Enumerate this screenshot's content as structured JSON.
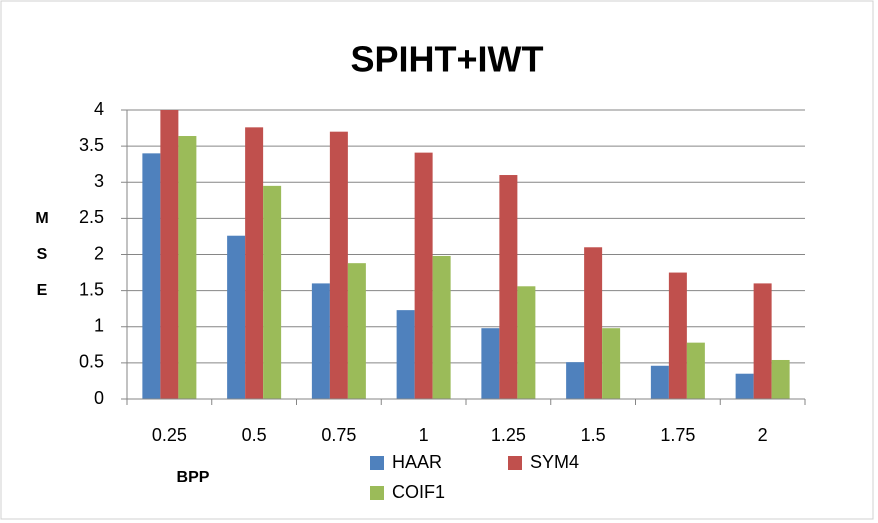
{
  "chart_data": {
    "type": "bar",
    "title": "SPIHT+IWT",
    "x_label": "BPP",
    "y_label": [
      "M",
      "S",
      "E"
    ],
    "categories": [
      "0.25",
      "0.5",
      "0.75",
      "1",
      "1.25",
      "1.5",
      "1.75",
      "2"
    ],
    "series": [
      {
        "name": "HAAR",
        "color": "#4f81bd",
        "values": [
          3.4,
          2.26,
          1.6,
          1.23,
          0.98,
          0.51,
          0.46,
          0.35
        ]
      },
      {
        "name": "SYM4",
        "color": "#c0504d",
        "values": [
          4.0,
          3.76,
          3.7,
          3.41,
          3.1,
          2.1,
          1.75,
          1.6
        ]
      },
      {
        "name": "COIF1",
        "color": "#9bbb59",
        "values": [
          3.64,
          2.95,
          1.88,
          1.98,
          1.56,
          0.98,
          0.78,
          0.54
        ]
      }
    ],
    "ylim": [
      0,
      4
    ],
    "yticks": [
      0,
      0.5,
      1,
      1.5,
      2,
      2.5,
      3,
      3.5,
      4
    ],
    "grid": true,
    "legend": "bottom"
  }
}
